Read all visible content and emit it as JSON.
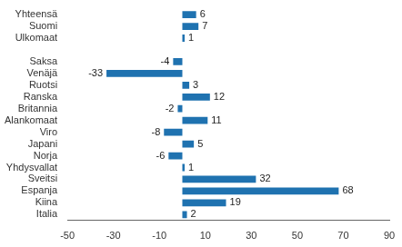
{
  "chart_data": {
    "type": "bar",
    "orientation": "horizontal",
    "categories": [
      "Yhteensä",
      "Suomi",
      "Ulkomaat",
      null,
      "Saksa",
      "Venäjä",
      "Ruotsi",
      "Ranska",
      "Britannia",
      "Alankomaat",
      "Viro",
      "Japani",
      "Norja",
      "Yhdysvallat",
      "Sveitsi",
      "Espanja",
      "Kiina",
      "Italia"
    ],
    "values": [
      6,
      7,
      1,
      null,
      -4,
      -33,
      3,
      12,
      -2,
      11,
      -8,
      5,
      -6,
      1,
      32,
      68,
      19,
      2
    ],
    "color": "#1f72b0",
    "xlim": [
      -50,
      90
    ],
    "xticks": [
      -50,
      -30,
      -10,
      10,
      30,
      50,
      70,
      90
    ],
    "grid": false,
    "data_labels": true
  }
}
